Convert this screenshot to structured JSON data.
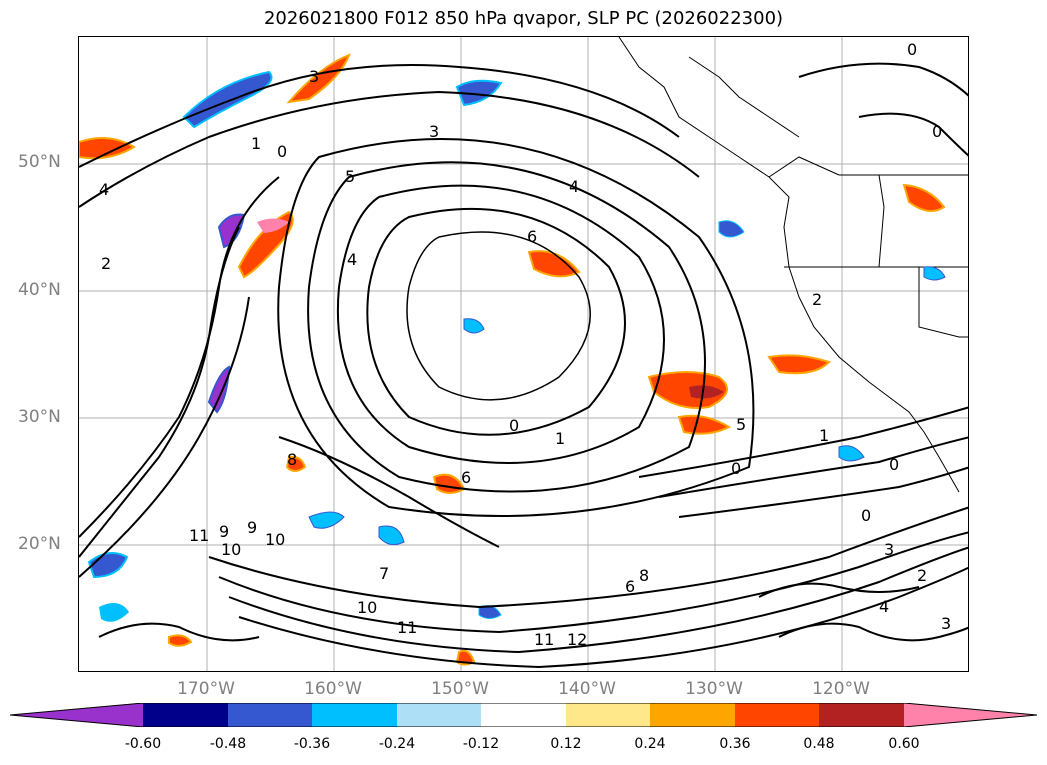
{
  "title": "2026021800 F012 850 hPa qvapor, SLP PC (2026022300)",
  "lat_labels": [
    "50°N",
    "40°N",
    "30°N",
    "20°N"
  ],
  "lon_labels": [
    "170°W",
    "160°W",
    "150°W",
    "140°W",
    "130°W",
    "120°W"
  ],
  "colorbar": {
    "ticks": [
      "-0.60",
      "-0.48",
      "-0.36",
      "-0.24",
      "-0.12",
      "0.12",
      "0.24",
      "0.36",
      "0.48",
      "0.60"
    ],
    "colors": {
      "lt_neg_060": "#9932CC",
      "neg_060_048": "#00008B",
      "neg_048_036": "#3558D0",
      "neg_036_024": "#00BFFF",
      "neg_024_012": "#ADDFF7",
      "neutral": "#FFFFFF",
      "pos_012_024": "#FFE88A",
      "pos_024_036": "#FFA500",
      "pos_036_048": "#FF4500",
      "pos_048_060": "#B22222",
      "gt_pos_060": "#FF82AB"
    }
  },
  "contour_labels": [
    "3",
    "1",
    "0",
    "4",
    "2",
    "5",
    "6",
    "4",
    "3",
    "0",
    "1",
    "5",
    "0",
    "8",
    "6",
    "9",
    "10",
    "11",
    "7",
    "10",
    "11",
    "12",
    "11",
    "6",
    "8",
    "0",
    "3",
    "2",
    "4",
    "3",
    "0",
    "0",
    "2",
    "4",
    "1",
    "0",
    "9",
    "10"
  ],
  "map_style": {
    "contour_color": "#000000",
    "grid_color": "#b0b0b0",
    "coast_color": "#000000"
  }
}
